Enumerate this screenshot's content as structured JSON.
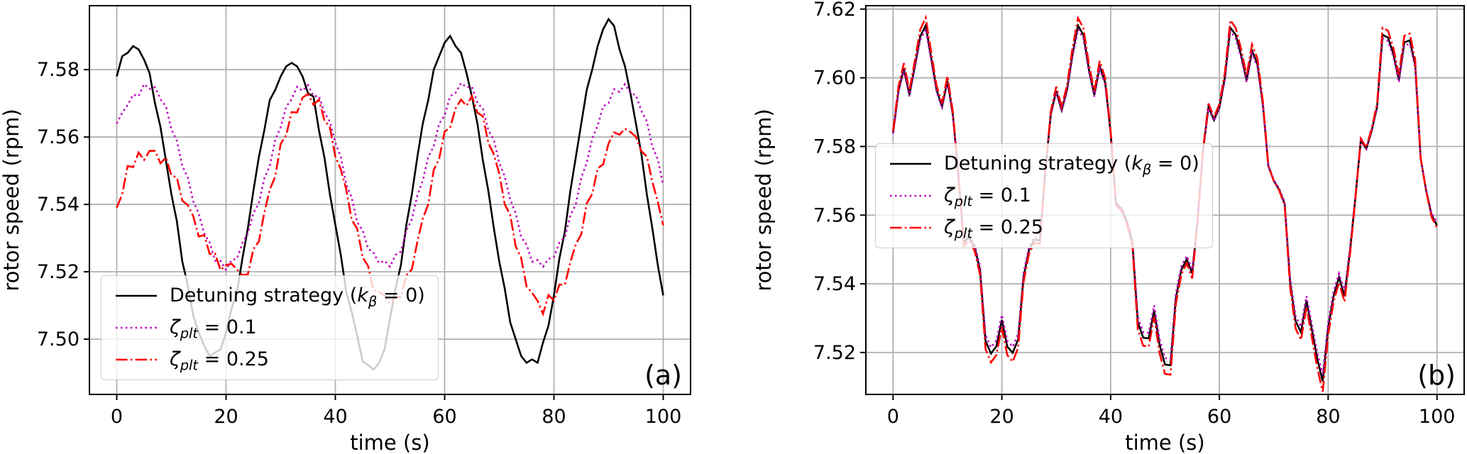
{
  "style": {
    "background": "#ffffff",
    "text_color": "#000000",
    "grid_color": "#b0b0b0",
    "spine_color": "#000000",
    "legend_edge": "#cccccc",
    "line_width": 2.6,
    "tick_font_size": 27,
    "label_font_size": 29,
    "corner_font_size": 38
  },
  "legend": {
    "entries": [
      {
        "pre": "Detuning strategy (",
        "it": "k",
        "sub": "β",
        "post": " = 0)"
      },
      {
        "pre": "",
        "it": "ζ",
        "sub": "plt",
        "post": " = 0.1"
      },
      {
        "pre": "",
        "it": "ζ",
        "sub": "plt",
        "post": " = 0.25"
      }
    ]
  },
  "chart_data": [
    {
      "id": "a",
      "type": "line",
      "corner_label": "(a)",
      "xlabel": "time (s)",
      "ylabel": "rotor speed (rpm)",
      "xticks": [
        0,
        20,
        40,
        60,
        80,
        100
      ],
      "yticks": [
        7.5,
        7.52,
        7.54,
        7.56,
        7.58
      ],
      "ytick_labels": [
        "7.50",
        "7.52",
        "7.54",
        "7.56",
        "7.58"
      ],
      "xlim": [
        -5,
        105
      ],
      "ylim": [
        7.4836,
        7.599
      ],
      "grid": true,
      "legend_loc": "lower left",
      "x_start": 0,
      "x_step": 1,
      "series": [
        {
          "name": "Detuning strategy (kβ = 0)",
          "color": "#000000",
          "dash": "solid",
          "values": [
            7.578,
            7.584,
            7.585,
            7.587,
            7.586,
            7.583,
            7.579,
            7.57,
            7.563,
            7.553,
            7.543,
            7.535,
            7.523,
            7.516,
            7.507,
            7.502,
            7.498,
            7.495,
            7.496,
            7.497,
            7.502,
            7.509,
            7.514,
            7.524,
            7.533,
            7.544,
            7.554,
            7.562,
            7.571,
            7.574,
            7.578,
            7.581,
            7.582,
            7.581,
            7.578,
            7.573,
            7.572,
            7.562,
            7.554,
            7.543,
            7.534,
            7.525,
            7.514,
            7.508,
            7.501,
            7.4934,
            7.4923,
            7.491,
            7.493,
            7.497,
            7.506,
            7.515,
            7.522,
            7.534,
            7.543,
            7.554,
            7.564,
            7.571,
            7.58,
            7.584,
            7.588,
            7.59,
            7.587,
            7.585,
            7.579,
            7.572,
            7.564,
            7.553,
            7.544,
            7.533,
            7.523,
            7.515,
            7.505,
            7.5,
            7.495,
            7.493,
            7.494,
            7.493,
            7.499,
            7.504,
            7.513,
            7.524,
            7.532,
            7.544,
            7.554,
            7.564,
            7.574,
            7.58,
            7.587,
            7.592,
            7.595,
            7.593,
            7.586,
            7.581,
            7.573,
            7.564,
            7.555,
            7.543,
            7.533,
            7.522,
            7.513
          ]
        },
        {
          "name": "ζplt = 0.1",
          "color": "#bf00bf",
          "dash": "dotted",
          "values": [
            7.564,
            7.5672,
            7.5695,
            7.5726,
            7.5722,
            7.5757,
            7.5743,
            7.5748,
            7.5712,
            7.5691,
            7.5623,
            7.5589,
            7.5514,
            7.548,
            7.5409,
            7.5373,
            7.5314,
            7.5287,
            7.5233,
            7.5232,
            7.5206,
            7.5235,
            7.5239,
            7.5286,
            7.5314,
            7.5374,
            7.5403,
            7.5477,
            7.5514,
            7.5592,
            7.5629,
            7.569,
            7.5712,
            7.5749,
            7.5737,
            7.5754,
            7.5722,
            7.5721,
            7.5673,
            7.5646,
            7.5583,
            7.5541,
            7.546,
            7.542,
            7.5347,
            7.5323,
            7.5269,
            7.5256,
            7.5226,
            7.5233,
            7.5215,
            7.525,
            7.526,
            7.5323,
            7.5356,
            7.5426,
            7.5471,
            7.5541,
            7.5572,
            7.564,
            7.5664,
            7.5721,
            7.5731,
            7.576,
            7.5748,
            7.5749,
            7.5701,
            7.5684,
            7.562,
            7.5592,
            7.5523,
            7.5483,
            7.5414,
            7.5374,
            7.5303,
            7.528,
            7.523,
            7.5235,
            7.5215,
            7.5238,
            7.5244,
            7.5287,
            7.5303,
            7.5367,
            7.54,
            7.548,
            7.5523,
            7.5595,
            7.5634,
            7.5691,
            7.5701,
            7.5742,
            7.5734,
            7.5757,
            7.5731,
            7.5724,
            7.5678,
            7.5647,
            7.5572,
            7.5534,
            7.5457
          ]
        },
        {
          "name": "ζplt = 0.25",
          "color": "#ff0000",
          "dash": "dashdot",
          "values": [
            7.539,
            7.543,
            7.5514,
            7.5511,
            7.5554,
            7.5532,
            7.5559,
            7.5559,
            7.5522,
            7.5539,
            7.5486,
            7.548,
            7.5411,
            7.5398,
            7.5365,
            7.5305,
            7.5309,
            7.5253,
            7.5254,
            7.5205,
            7.522,
            7.5224,
            7.5207,
            7.519,
            7.5193,
            7.5267,
            7.529,
            7.5375,
            7.5444,
            7.5483,
            7.558,
            7.5605,
            7.5674,
            7.5673,
            7.5717,
            7.5728,
            7.5696,
            7.5711,
            7.565,
            7.5629,
            7.5542,
            7.5504,
            7.5444,
            7.5354,
            7.5328,
            7.5243,
            7.5217,
            7.5144,
            7.514,
            7.513,
            7.5105,
            7.5125,
            7.5125,
            7.519,
            7.5207,
            7.5289,
            7.5358,
            7.54,
            7.5502,
            7.5536,
            7.5616,
            7.5628,
            7.5685,
            7.5711,
            7.5693,
            7.5722,
            7.5672,
            7.5662,
            7.5582,
            7.5549,
            7.5491,
            7.54,
            7.5369,
            7.5276,
            7.5241,
            7.5156,
            7.5138,
            7.5114,
            7.5075,
            7.5131,
            7.5115,
            7.5162,
            7.5162,
            7.5228,
            7.5282,
            7.5311,
            7.5403,
            7.5431,
            7.5507,
            7.5519,
            7.5581,
            7.5614,
            7.5607,
            7.5625,
            7.5615,
            7.5601,
            7.5558,
            7.5542,
            7.5468,
            7.5408,
            7.5338
          ]
        }
      ]
    },
    {
      "id": "b",
      "type": "line",
      "corner_label": "(b)",
      "xlabel": "time (s)",
      "ylabel": "rotor speed (rpm)",
      "xticks": [
        0,
        20,
        40,
        60,
        80,
        100
      ],
      "yticks": [
        7.52,
        7.54,
        7.56,
        7.58,
        7.6,
        7.62
      ],
      "ytick_labels": [
        "7.52",
        "7.54",
        "7.56",
        "7.58",
        "7.60",
        "7.62"
      ],
      "xlim": [
        -5,
        105
      ],
      "ylim": [
        7.5078,
        7.621
      ],
      "grid": true,
      "legend_loc": "center left",
      "x_start": 0,
      "x_step": 1,
      "base_mid": 7.5655,
      "base_values": [
        7.5839,
        7.5963,
        7.6027,
        7.5951,
        7.6034,
        7.612,
        7.6153,
        7.6058,
        7.5965,
        7.5916,
        7.5991,
        7.5892,
        7.5719,
        7.5521,
        7.5535,
        7.5506,
        7.544,
        7.5234,
        7.5197,
        7.5218,
        7.5295,
        7.5217,
        7.5199,
        7.5238,
        7.542,
        7.5499,
        7.5529,
        7.5526,
        7.573,
        7.5894,
        7.5962,
        7.5906,
        7.5967,
        7.6069,
        7.6152,
        7.6125,
        7.6025,
        7.595,
        7.6033,
        7.5986,
        7.5839,
        7.5633,
        7.5618,
        7.558,
        7.5522,
        7.5288,
        7.5243,
        7.5241,
        7.5323,
        7.5223,
        7.5165,
        7.5163,
        7.5359,
        7.5441,
        7.5472,
        7.543,
        7.5588,
        7.5788,
        7.5915,
        7.5877,
        7.5914,
        7.6,
        7.6146,
        7.6125,
        7.6065,
        7.5993,
        7.6079,
        7.6039,
        7.5921,
        7.5743,
        7.57,
        7.5674,
        7.5633,
        7.5405,
        7.5292,
        7.5259,
        7.5351,
        7.5267,
        7.5181,
        7.5116,
        7.5273,
        7.5366,
        7.5419,
        7.5365,
        7.5495,
        7.565,
        7.5818,
        7.5793,
        7.5846,
        7.5916,
        7.6125,
        7.6117,
        7.6068,
        7.5994,
        7.6103,
        7.6109,
        7.6037,
        7.5765,
        7.5672,
        7.5601,
        7.557
      ],
      "series": [
        {
          "name": "Detuning strategy (kβ = 0)",
          "color": "#000000",
          "dash": "solid",
          "scale": 1.0,
          "offset": 0
        },
        {
          "name": "ζplt = 0.1",
          "color": "#bf00bf",
          "dash": "dotted",
          "scale": 0.97,
          "offset": 0.0004
        },
        {
          "name": "ζplt = 0.25",
          "color": "#ff0000",
          "dash": "dashdot",
          "scale": 1.05,
          "offset": -0.0003
        }
      ]
    }
  ]
}
